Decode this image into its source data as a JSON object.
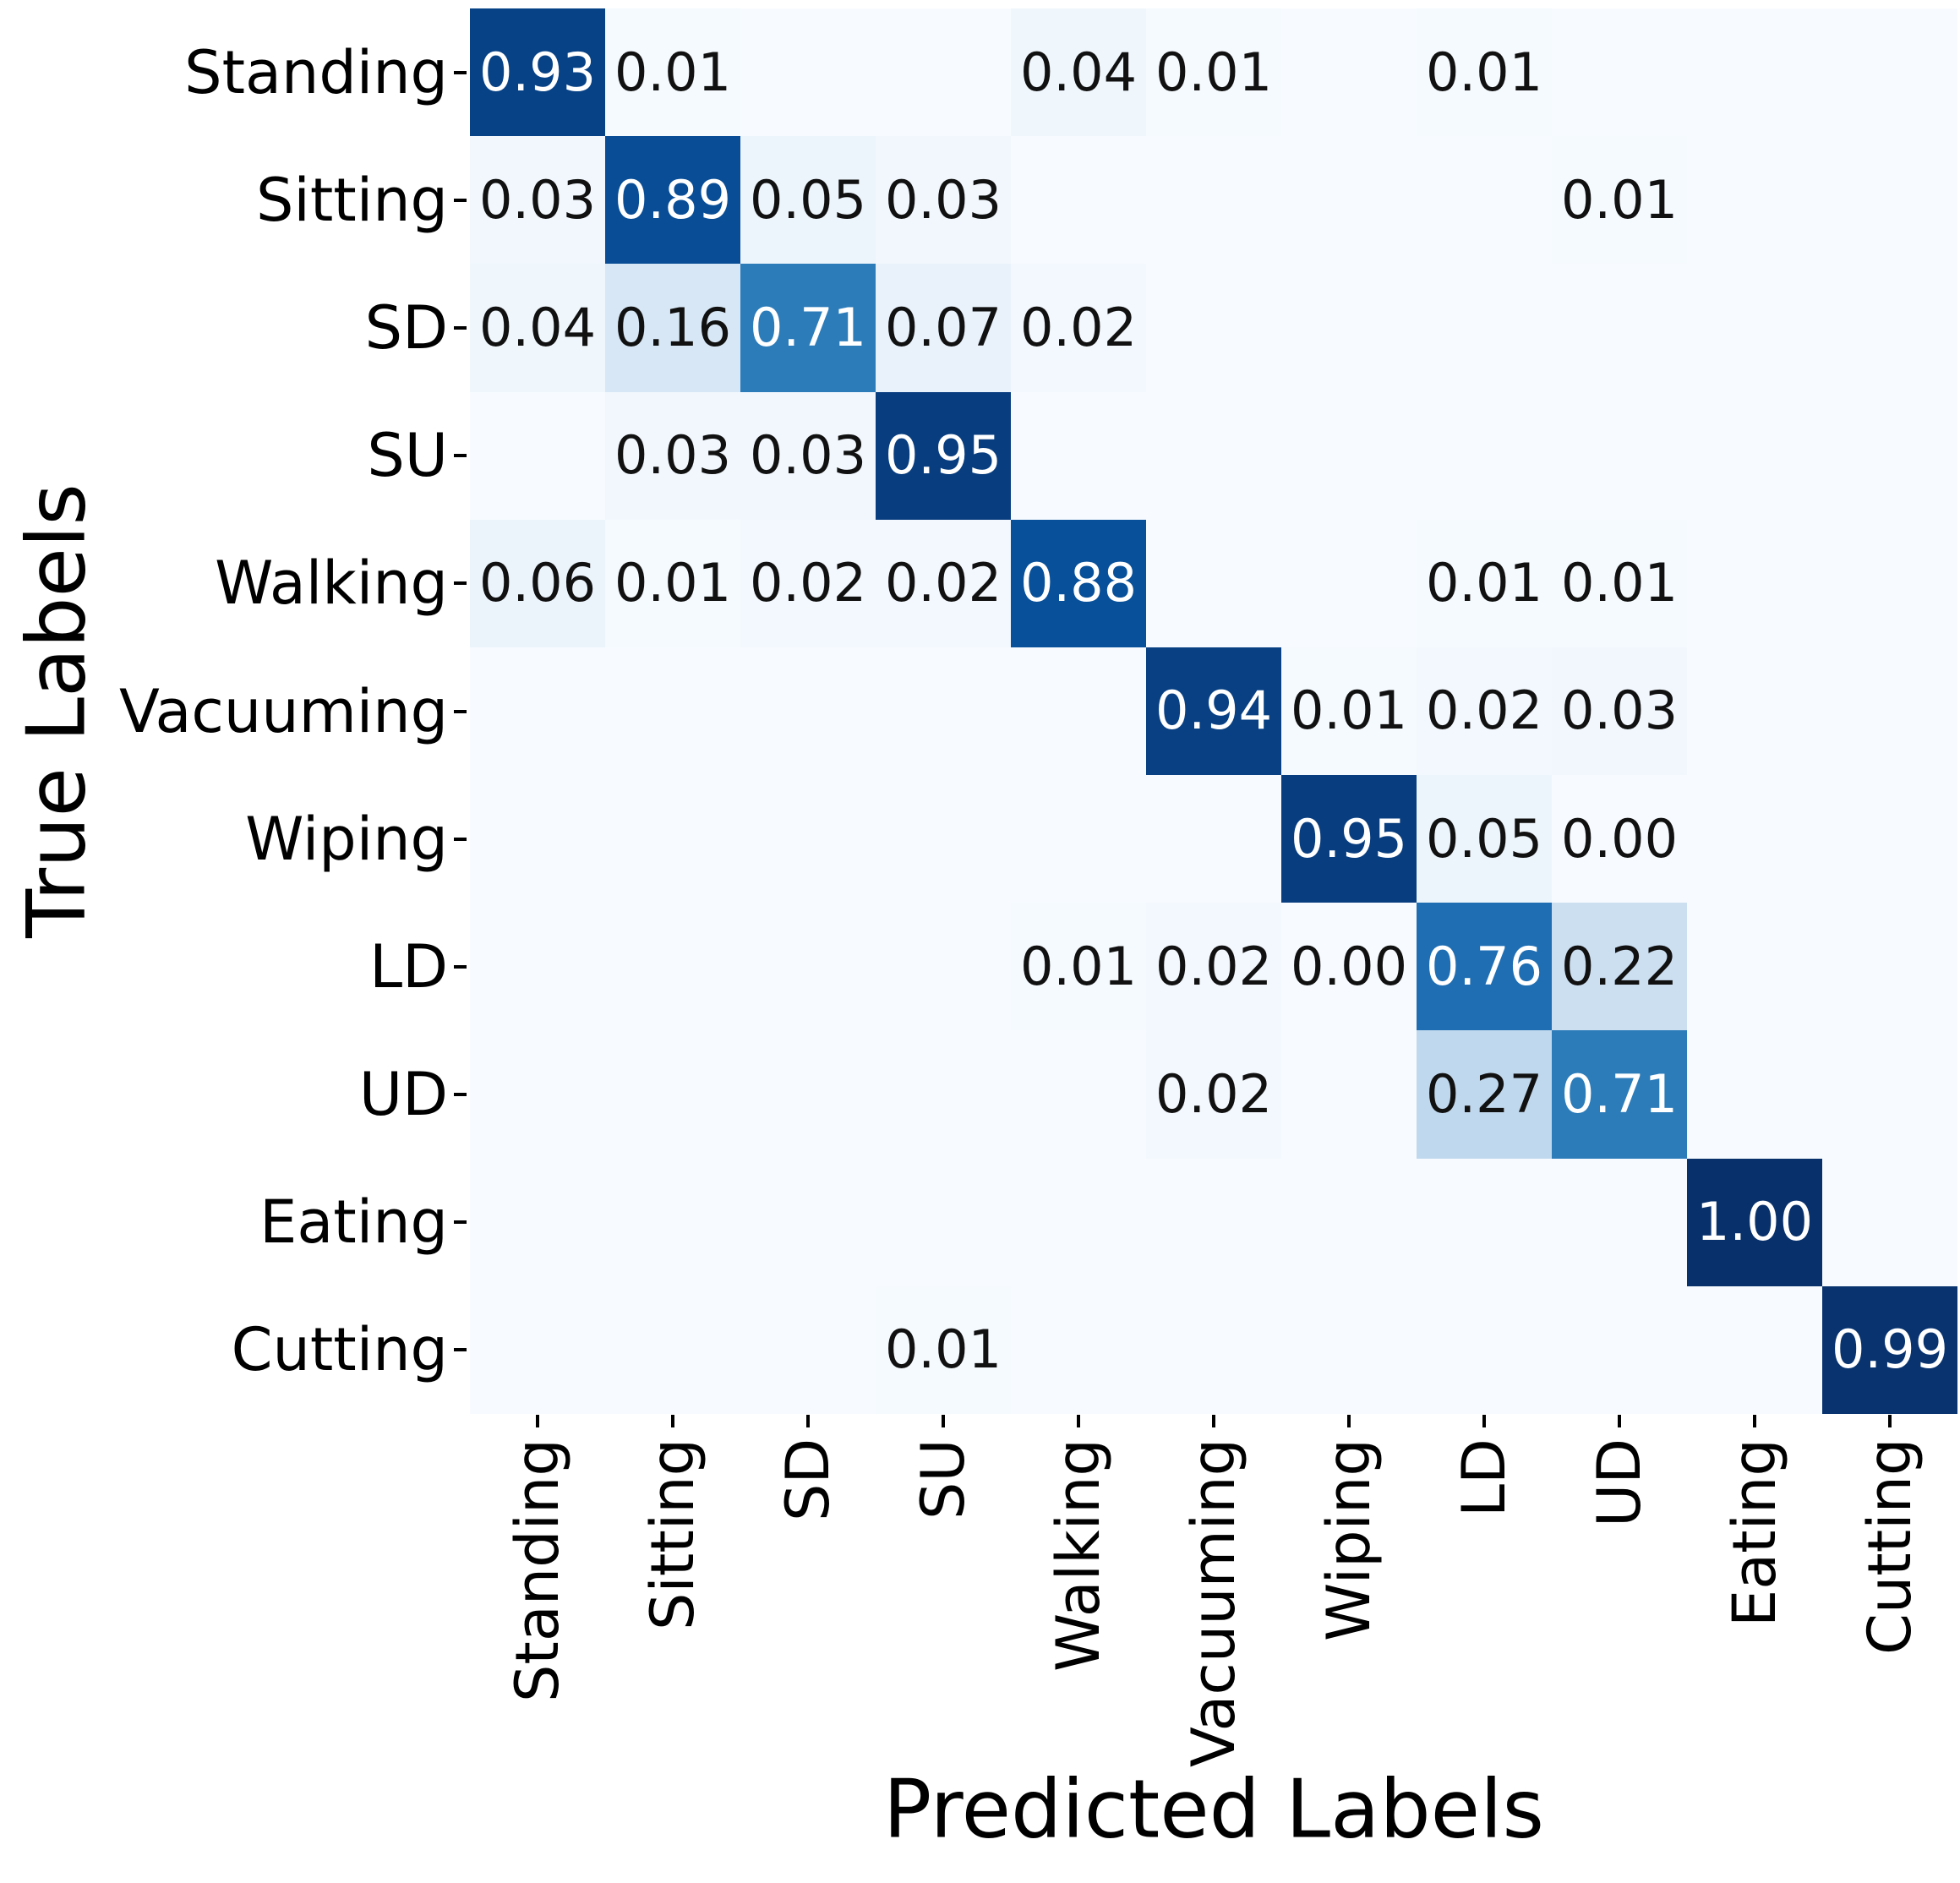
{
  "figure": {
    "background_color": "#ffffff",
    "text_color": "#000000"
  },
  "chart_data": {
    "type": "heatmap",
    "title": "",
    "xlabel": "Predicted Labels",
    "ylabel": "True Labels",
    "x_tick_labels": [
      "Standing",
      "Sitting",
      "SD",
      "SU",
      "Walking",
      "Vacuuming",
      "Wiping",
      "LD",
      "UD",
      "Eating",
      "Cutting"
    ],
    "y_tick_labels": [
      "Standing",
      "Sitting",
      "SD",
      "SU",
      "Walking",
      "Vacuuming",
      "Wiping",
      "LD",
      "UD",
      "Eating",
      "Cutting"
    ],
    "vmin": 0,
    "vmax": 1,
    "grid": false,
    "legend": "none",
    "colormap": "Blues",
    "colormap_stops": [
      "#f7fbff",
      "#deebf7",
      "#c6dbef",
      "#9ecae1",
      "#6baed6",
      "#4292c6",
      "#2171b5",
      "#08519c",
      "#08306b"
    ],
    "annotation_dark_text_color": "#111111",
    "annotation_light_text_color": "#ffffff",
    "values": [
      [
        0.93,
        0.01,
        0,
        0,
        0.04,
        0.01,
        0,
        0.01,
        0,
        0,
        0
      ],
      [
        0.03,
        0.89,
        0.05,
        0.03,
        0,
        0,
        0,
        0,
        0.01,
        0,
        0
      ],
      [
        0.04,
        0.16,
        0.71,
        0.07,
        0.02,
        0,
        0,
        0,
        0,
        0,
        0
      ],
      [
        0,
        0.03,
        0.03,
        0.95,
        0,
        0,
        0,
        0,
        0,
        0,
        0
      ],
      [
        0.06,
        0.01,
        0.02,
        0.02,
        0.88,
        0,
        0,
        0.01,
        0.01,
        0,
        0
      ],
      [
        0,
        0,
        0,
        0,
        0,
        0.94,
        0.01,
        0.02,
        0.03,
        0,
        0
      ],
      [
        0,
        0,
        0,
        0,
        0,
        0,
        0.95,
        0.05,
        0.0,
        0,
        0
      ],
      [
        0,
        0,
        0,
        0,
        0.01,
        0.02,
        0.0,
        0.76,
        0.22,
        0,
        0
      ],
      [
        0,
        0,
        0,
        0,
        0,
        0.02,
        0,
        0.27,
        0.71,
        0,
        0
      ],
      [
        0,
        0,
        0,
        0,
        0,
        0,
        0,
        0,
        0,
        1.0,
        0
      ],
      [
        0,
        0,
        0,
        0.01,
        0,
        0,
        0,
        0,
        0,
        0,
        0.99
      ]
    ],
    "annotations": [
      [
        "0.93",
        "0.01",
        "",
        "",
        "0.04",
        "0.01",
        "",
        "0.01",
        "",
        "",
        ""
      ],
      [
        "0.03",
        "0.89",
        "0.05",
        "0.03",
        "",
        "",
        "",
        "",
        "0.01",
        "",
        ""
      ],
      [
        "0.04",
        "0.16",
        "0.71",
        "0.07",
        "0.02",
        "",
        "",
        "",
        "",
        "",
        ""
      ],
      [
        "",
        "0.03",
        "0.03",
        "0.95",
        "",
        "",
        "",
        "",
        "",
        "",
        ""
      ],
      [
        "0.06",
        "0.01",
        "0.02",
        "0.02",
        "0.88",
        "",
        "",
        "0.01",
        "0.01",
        "",
        ""
      ],
      [
        "",
        "",
        "",
        "",
        "",
        "0.94",
        "0.01",
        "0.02",
        "0.03",
        "",
        ""
      ],
      [
        "",
        "",
        "",
        "",
        "",
        "",
        "0.95",
        "0.05",
        "0.00",
        "",
        ""
      ],
      [
        "",
        "",
        "",
        "",
        "0.01",
        "0.02",
        "0.00",
        "0.76",
        "0.22",
        "",
        ""
      ],
      [
        "",
        "",
        "",
        "",
        "",
        "0.02",
        "",
        "0.27",
        "0.71",
        "",
        ""
      ],
      [
        "",
        "",
        "",
        "",
        "",
        "",
        "",
        "",
        "",
        "1.00",
        ""
      ],
      [
        "",
        "",
        "",
        "0.01",
        "",
        "",
        "",
        "",
        "",
        "",
        "0.99"
      ]
    ]
  }
}
